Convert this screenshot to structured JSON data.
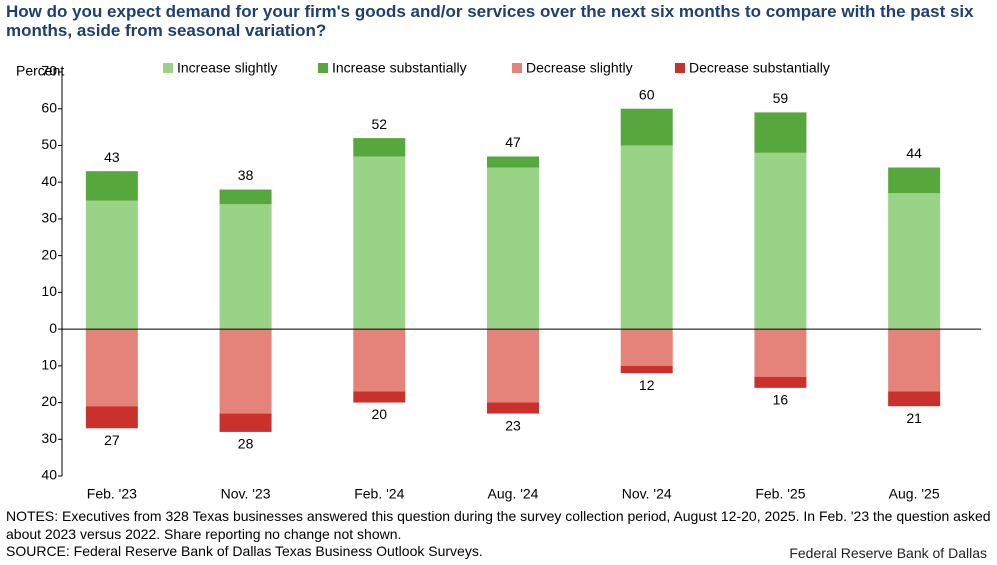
{
  "chart_data": {
    "type": "stacked_bar",
    "title": "How do you expect demand for your firm's goods and/or services over the next six months to compare with the past six months, aside from seasonal variation?",
    "y_axis_label": "Percent",
    "categories": [
      "Feb. '23",
      "Nov. '23",
      "Feb. '24",
      "Aug. '24",
      "Nov. '24",
      "Feb. '25",
      "Aug. '25"
    ],
    "series": [
      {
        "name": "Increase slightly",
        "color": "#99d386",
        "values": [
          35,
          34,
          47,
          44,
          50,
          48,
          37
        ]
      },
      {
        "name": "Increase substantially",
        "color": "#56a83c",
        "values": [
          8,
          4,
          5,
          3,
          10,
          11,
          7
        ]
      },
      {
        "name": "Decrease slightly",
        "color": "#e5837b",
        "values": [
          -21,
          -23,
          -17,
          -20,
          -10,
          -13,
          -17
        ]
      },
      {
        "name": "Decrease substantially",
        "color": "#c9312c",
        "values": [
          -6,
          -5,
          -3,
          -3,
          -2,
          -3,
          -4
        ]
      }
    ],
    "increase_totals": [
      43,
      38,
      52,
      47,
      60,
      59,
      44
    ],
    "decrease_totals": [
      27,
      28,
      20,
      23,
      12,
      16,
      21
    ],
    "ylim": [
      -40,
      70
    ],
    "yticks": [
      70,
      60,
      50,
      40,
      30,
      20,
      10,
      0,
      {
        "value": -10,
        "label": "10"
      },
      {
        "value": -20,
        "label": "20"
      },
      {
        "value": -30,
        "label": "30"
      },
      {
        "value": -40,
        "label": "40"
      }
    ],
    "legend": "top",
    "notes": "NOTES: Executives from 328 Texas businesses answered this question during the survey collection period, August 12-20, 2025. In Feb. '23 the question asked about 2023 versus 2022. Share reporting no change not shown.",
    "source": "SOURCE: Federal Reserve Bank of Dallas Texas Business Outlook Surveys.",
    "credit": "Federal Reserve Bank of Dallas"
  }
}
